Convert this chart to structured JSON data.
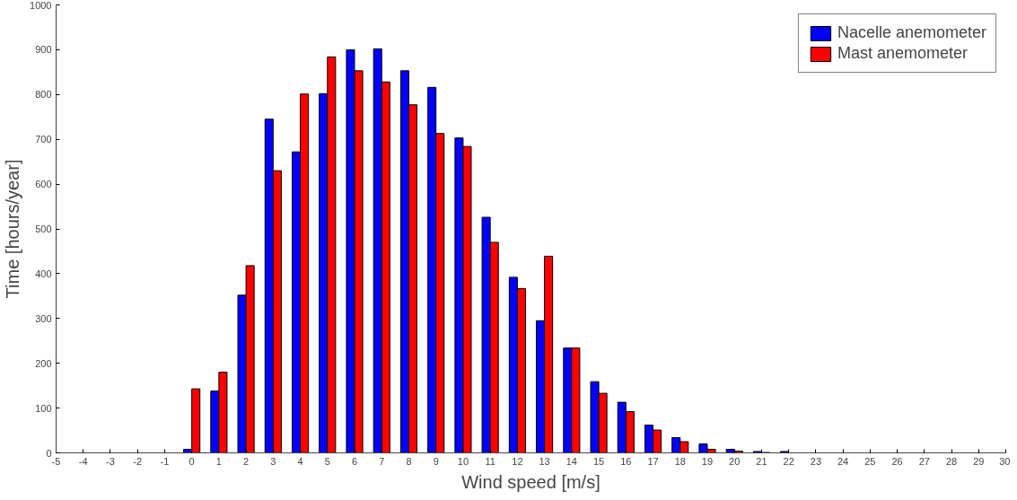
{
  "chart_data": {
    "type": "bar",
    "xlabel": "Wind speed [m/s]",
    "ylabel": "Time [hours/year]",
    "x": [
      0,
      1,
      2,
      3,
      4,
      5,
      6,
      7,
      8,
      9,
      10,
      11,
      12,
      13,
      14,
      15,
      16,
      17,
      18,
      19,
      20,
      21,
      22
    ],
    "series": [
      {
        "name": "Nacelle anemometer",
        "color": "#0000ff",
        "values": [
          8,
          138,
          352,
          745,
          672,
          802,
          900,
          902,
          853,
          816,
          703,
          526,
          392,
          295,
          234,
          159,
          113,
          62,
          34,
          20,
          8,
          3,
          3
        ]
      },
      {
        "name": "Mast anemometer",
        "color": "#ff0000",
        "values": [
          143,
          180,
          418,
          630,
          801,
          884,
          853,
          828,
          777,
          713,
          684,
          470,
          367,
          439,
          234,
          133,
          92,
          51,
          25,
          8,
          4,
          1,
          null
        ]
      }
    ],
    "xlim": [
      -5,
      30
    ],
    "xticks": [
      -5,
      -4,
      -3,
      -2,
      -1,
      0,
      1,
      2,
      3,
      4,
      5,
      6,
      7,
      8,
      9,
      10,
      11,
      12,
      13,
      14,
      15,
      16,
      17,
      18,
      19,
      20,
      21,
      22,
      23,
      24,
      25,
      26,
      27,
      28,
      29,
      30
    ],
    "ylim": [
      0,
      1000
    ],
    "yticks": [
      0,
      100,
      200,
      300,
      400,
      500,
      600,
      700,
      800,
      900,
      1000
    ],
    "grid": false,
    "legend": "top right"
  }
}
